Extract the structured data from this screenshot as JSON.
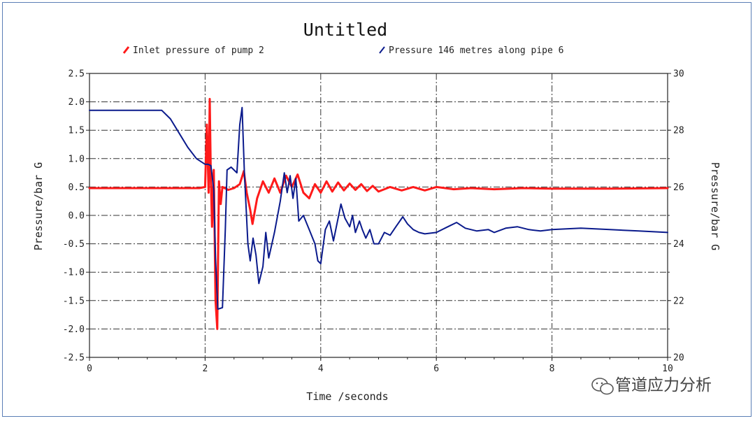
{
  "watermark": {
    "text": "管道应力分析"
  },
  "chart_data": {
    "type": "line",
    "title": "Untitled",
    "xlabel": "Time /seconds",
    "ylabel_left": "Pressure/bar G",
    "ylabel_right": "Pressure/bar G",
    "xlim": [
      0,
      10
    ],
    "ylim_left": [
      -2.5,
      2.5
    ],
    "ylim_right": [
      20,
      30
    ],
    "x_ticks": [
      "0",
      "2",
      "4",
      "6",
      "8",
      "10"
    ],
    "y_left_ticks": [
      "2.5",
      "2.0",
      "1.5",
      "1.0",
      "0.5",
      "0.0",
      "-0.5",
      "-1.0",
      "-1.5",
      "-2.0",
      "-2.5"
    ],
    "y_right_ticks": [
      "30",
      "28",
      "26",
      "24",
      "22",
      "20"
    ],
    "grid": true,
    "legend_position": "top",
    "series": [
      {
        "name": "Inlet pressure of pump 2",
        "axis": "left",
        "color": "#ff1a1a",
        "points": [
          [
            0,
            0.48
          ],
          [
            1.9,
            0.48
          ],
          [
            2.0,
            0.5
          ],
          [
            2.03,
            1.6
          ],
          [
            2.06,
            0.4
          ],
          [
            2.08,
            2.05
          ],
          [
            2.1,
            0.6
          ],
          [
            2.12,
            -0.2
          ],
          [
            2.15,
            0.8
          ],
          [
            2.18,
            -1.5
          ],
          [
            2.21,
            -2.0
          ],
          [
            2.24,
            0.6
          ],
          [
            2.27,
            0.2
          ],
          [
            2.3,
            0.5
          ],
          [
            2.4,
            0.45
          ],
          [
            2.5,
            0.48
          ],
          [
            2.6,
            0.55
          ],
          [
            2.67,
            0.78
          ],
          [
            2.72,
            0.4
          ],
          [
            2.78,
            0.1
          ],
          [
            2.82,
            -0.15
          ],
          [
            2.9,
            0.3
          ],
          [
            3.0,
            0.6
          ],
          [
            3.1,
            0.4
          ],
          [
            3.2,
            0.65
          ],
          [
            3.3,
            0.4
          ],
          [
            3.4,
            0.7
          ],
          [
            3.5,
            0.5
          ],
          [
            3.6,
            0.72
          ],
          [
            3.7,
            0.4
          ],
          [
            3.8,
            0.3
          ],
          [
            3.9,
            0.55
          ],
          [
            4.0,
            0.4
          ],
          [
            4.1,
            0.6
          ],
          [
            4.2,
            0.42
          ],
          [
            4.3,
            0.58
          ],
          [
            4.4,
            0.44
          ],
          [
            4.5,
            0.56
          ],
          [
            4.6,
            0.45
          ],
          [
            4.7,
            0.55
          ],
          [
            4.8,
            0.43
          ],
          [
            4.9,
            0.52
          ],
          [
            5.0,
            0.42
          ],
          [
            5.2,
            0.5
          ],
          [
            5.4,
            0.44
          ],
          [
            5.6,
            0.5
          ],
          [
            5.8,
            0.44
          ],
          [
            6.0,
            0.5
          ],
          [
            6.3,
            0.46
          ],
          [
            6.6,
            0.48
          ],
          [
            7.0,
            0.46
          ],
          [
            7.5,
            0.48
          ],
          [
            8.0,
            0.47
          ],
          [
            9.0,
            0.47
          ],
          [
            10.0,
            0.48
          ]
        ]
      },
      {
        "name": "Pressure 146 metres along pipe 6",
        "axis": "right",
        "color": "#0a1a8c",
        "points": [
          [
            0,
            28.7
          ],
          [
            1.25,
            28.7
          ],
          [
            1.4,
            28.4
          ],
          [
            1.55,
            27.9
          ],
          [
            1.7,
            27.4
          ],
          [
            1.85,
            27.0
          ],
          [
            2.0,
            26.8
          ],
          [
            2.05,
            26.8
          ],
          [
            2.1,
            26.75
          ],
          [
            2.15,
            25.9
          ],
          [
            2.18,
            23.5
          ],
          [
            2.22,
            21.7
          ],
          [
            2.3,
            21.75
          ],
          [
            2.35,
            24.5
          ],
          [
            2.38,
            26.6
          ],
          [
            2.45,
            26.7
          ],
          [
            2.55,
            26.5
          ],
          [
            2.6,
            28.2
          ],
          [
            2.64,
            28.8
          ],
          [
            2.68,
            26.5
          ],
          [
            2.74,
            24.0
          ],
          [
            2.78,
            23.4
          ],
          [
            2.83,
            24.2
          ],
          [
            2.88,
            23.6
          ],
          [
            2.93,
            22.6
          ],
          [
            3.0,
            23.2
          ],
          [
            3.05,
            24.4
          ],
          [
            3.1,
            23.5
          ],
          [
            3.2,
            24.4
          ],
          [
            3.3,
            25.5
          ],
          [
            3.37,
            26.5
          ],
          [
            3.42,
            25.8
          ],
          [
            3.47,
            26.4
          ],
          [
            3.52,
            25.6
          ],
          [
            3.57,
            26.3
          ],
          [
            3.62,
            24.8
          ],
          [
            3.7,
            25.0
          ],
          [
            3.8,
            24.5
          ],
          [
            3.9,
            24.0
          ],
          [
            3.95,
            23.4
          ],
          [
            4.0,
            23.3
          ],
          [
            4.08,
            24.5
          ],
          [
            4.15,
            24.8
          ],
          [
            4.22,
            24.1
          ],
          [
            4.3,
            24.9
          ],
          [
            4.35,
            25.4
          ],
          [
            4.42,
            24.9
          ],
          [
            4.5,
            24.6
          ],
          [
            4.55,
            25.0
          ],
          [
            4.6,
            24.4
          ],
          [
            4.67,
            24.8
          ],
          [
            4.72,
            24.5
          ],
          [
            4.78,
            24.2
          ],
          [
            4.85,
            24.5
          ],
          [
            4.92,
            24.0
          ],
          [
            5.0,
            24.0
          ],
          [
            5.1,
            24.4
          ],
          [
            5.2,
            24.3
          ],
          [
            5.3,
            24.6
          ],
          [
            5.42,
            24.95
          ],
          [
            5.5,
            24.7
          ],
          [
            5.6,
            24.5
          ],
          [
            5.7,
            24.4
          ],
          [
            5.8,
            24.35
          ],
          [
            6.0,
            24.4
          ],
          [
            6.2,
            24.6
          ],
          [
            6.35,
            24.75
          ],
          [
            6.5,
            24.55
          ],
          [
            6.7,
            24.45
          ],
          [
            6.9,
            24.5
          ],
          [
            7.0,
            24.4
          ],
          [
            7.2,
            24.55
          ],
          [
            7.4,
            24.6
          ],
          [
            7.6,
            24.5
          ],
          [
            7.8,
            24.45
          ],
          [
            8.0,
            24.5
          ],
          [
            8.5,
            24.55
          ],
          [
            9.0,
            24.5
          ],
          [
            9.5,
            24.45
          ],
          [
            10.0,
            24.4
          ]
        ]
      }
    ]
  }
}
